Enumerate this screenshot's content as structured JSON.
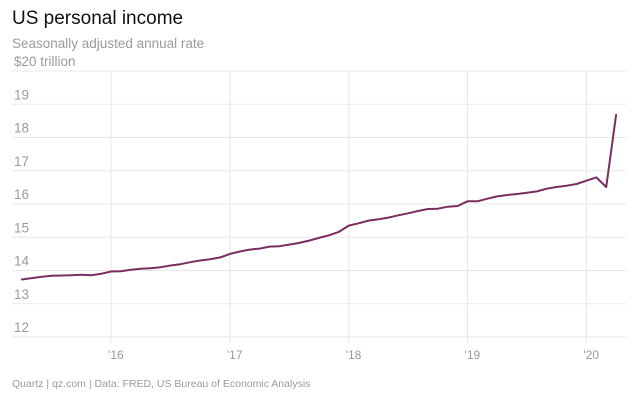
{
  "title": "US personal income",
  "subtitle": "Seasonally adjusted annual rate",
  "footer": "Quartz | qz.com | Data: FRED, US Bureau of Economic Analysis",
  "chart_data": {
    "type": "line",
    "title": "US personal income",
    "subtitle": "Seasonally adjusted annual rate",
    "xlabel": "",
    "ylabel": "",
    "ylim": [
      12,
      20
    ],
    "xlim": [
      "2015-03",
      "2020-05"
    ],
    "y_ticks": [
      12,
      13,
      14,
      15,
      16,
      17,
      18,
      19,
      20
    ],
    "y_tick_labels": [
      "12",
      "13",
      "14",
      "15",
      "16",
      "17",
      "18",
      "19",
      "$20 trillion"
    ],
    "x_ticks": [
      "2016-01",
      "2017-01",
      "2018-01",
      "2019-01",
      "2020-01"
    ],
    "x_tick_labels": [
      "'16",
      "'17",
      "'18",
      "'19",
      "'20"
    ],
    "grid": "horizontal and vertical",
    "legend": "none",
    "line_color": "#7b2d62",
    "series": [
      {
        "x": [
          "2015-04",
          "2015-05",
          "2015-06",
          "2015-07",
          "2015-08",
          "2015-09",
          "2015-10",
          "2015-11",
          "2015-12",
          "2016-01",
          "2016-02",
          "2016-03",
          "2016-04",
          "2016-05",
          "2016-06",
          "2016-07",
          "2016-08",
          "2016-09",
          "2016-10",
          "2016-11",
          "2016-12",
          "2017-01",
          "2017-02",
          "2017-03",
          "2017-04",
          "2017-05",
          "2017-06",
          "2017-07",
          "2017-08",
          "2017-09",
          "2017-10",
          "2017-11",
          "2017-12",
          "2018-01",
          "2018-02",
          "2018-03",
          "2018-04",
          "2018-05",
          "2018-06",
          "2018-07",
          "2018-08",
          "2018-09",
          "2018-10",
          "2018-11",
          "2018-12",
          "2019-01",
          "2019-02",
          "2019-03",
          "2019-04",
          "2019-05",
          "2019-06",
          "2019-07",
          "2019-08",
          "2019-09",
          "2019-10",
          "2019-11",
          "2019-12",
          "2020-01",
          "2020-02",
          "2020-03",
          "2020-04"
        ],
        "values": [
          13.73,
          13.77,
          13.81,
          13.84,
          13.85,
          13.86,
          13.87,
          13.86,
          13.9,
          13.97,
          13.98,
          14.02,
          14.05,
          14.07,
          14.1,
          14.15,
          14.19,
          14.25,
          14.3,
          14.34,
          14.39,
          14.5,
          14.57,
          14.63,
          14.66,
          14.72,
          14.73,
          14.78,
          14.83,
          14.9,
          14.98,
          15.06,
          15.16,
          15.35,
          15.42,
          15.5,
          15.54,
          15.59,
          15.66,
          15.72,
          15.79,
          15.85,
          15.86,
          15.92,
          15.94,
          16.08,
          16.08,
          16.16,
          16.23,
          16.27,
          16.3,
          16.34,
          16.38,
          16.46,
          16.51,
          16.55,
          16.6,
          16.7,
          16.8,
          16.51,
          18.68
        ]
      }
    ]
  }
}
